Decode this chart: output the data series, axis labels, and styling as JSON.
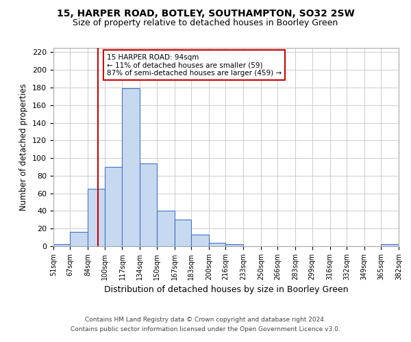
{
  "title1": "15, HARPER ROAD, BOTLEY, SOUTHAMPTON, SO32 2SW",
  "title2": "Size of property relative to detached houses in Boorley Green",
  "xlabel": "Distribution of detached houses by size in Boorley Green",
  "ylabel": "Number of detached properties",
  "footer1": "Contains HM Land Registry data © Crown copyright and database right 2024.",
  "footer2": "Contains public sector information licensed under the Open Government Licence v3.0.",
  "annotation_title": "15 HARPER ROAD: 94sqm",
  "annotation_line1": "← 11% of detached houses are smaller (59)",
  "annotation_line2": "87% of semi-detached houses are larger (459) →",
  "property_size": 94,
  "bin_edges": [
    51,
    67,
    84,
    100,
    117,
    134,
    150,
    167,
    183,
    200,
    216,
    233,
    250,
    266,
    283,
    299,
    316,
    332,
    349,
    365,
    382
  ],
  "bar_heights": [
    2,
    16,
    65,
    90,
    179,
    94,
    40,
    30,
    13,
    4,
    2,
    0,
    0,
    0,
    0,
    0,
    0,
    0,
    0,
    2
  ],
  "bar_color": "#c6d9f0",
  "bar_edge_color": "#4472c4",
  "vline_color": "#cc0000",
  "vline_x": 94,
  "annotation_box_color": "#cc0000",
  "annotation_bg": "#ffffff",
  "grid_color": "#cccccc",
  "ylim": [
    0,
    225
  ],
  "yticks": [
    0,
    20,
    40,
    60,
    80,
    100,
    120,
    140,
    160,
    180,
    200,
    220
  ]
}
